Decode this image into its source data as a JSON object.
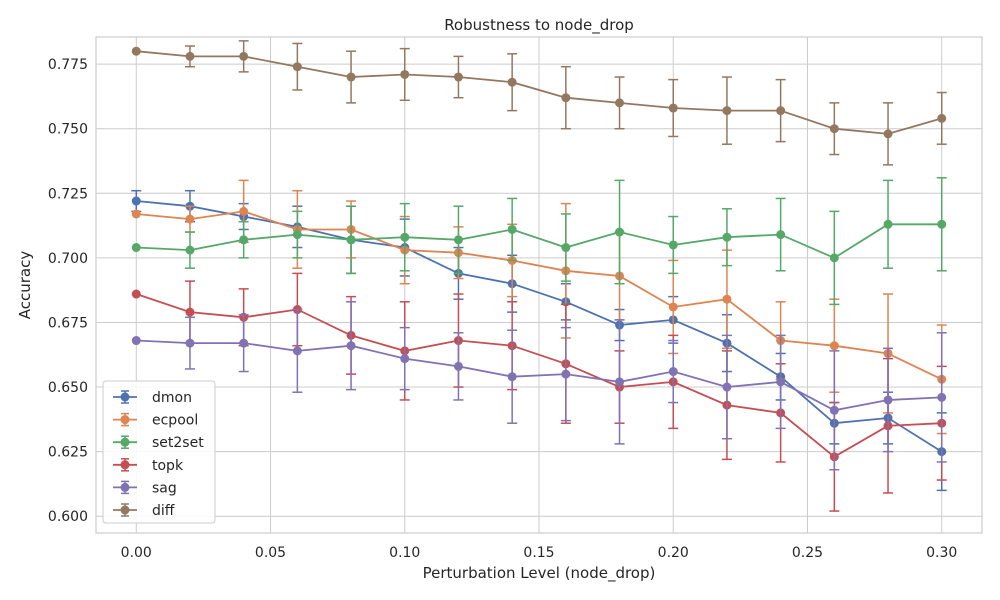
{
  "chart_data": {
    "type": "line",
    "title": "Robustness to node_drop",
    "xlabel": "Perturbation Level (node_drop)",
    "ylabel": "Accuracy",
    "xlim": [
      -0.015,
      0.315
    ],
    "ylim": [
      0.5935,
      0.7855
    ],
    "x_ticks": [
      0.0,
      0.05,
      0.1,
      0.15,
      0.2,
      0.25,
      0.3
    ],
    "x_tick_labels": [
      "0.00",
      "0.05",
      "0.10",
      "0.15",
      "0.20",
      "0.25",
      "0.30"
    ],
    "y_ticks": [
      0.6,
      0.625,
      0.65,
      0.675,
      0.7,
      0.725,
      0.75,
      0.775
    ],
    "y_tick_labels": [
      "0.600",
      "0.625",
      "0.650",
      "0.675",
      "0.700",
      "0.725",
      "0.750",
      "0.775"
    ],
    "grid": true,
    "legend_position": "bottom-left",
    "x": [
      0.0,
      0.02,
      0.04,
      0.06,
      0.08,
      0.1,
      0.12,
      0.14,
      0.16,
      0.18,
      0.2,
      0.22,
      0.24,
      0.26,
      0.28,
      0.3
    ],
    "series": [
      {
        "name": "dmon",
        "color": "#4c72b0",
        "values": [
          0.722,
          0.72,
          0.716,
          0.712,
          0.707,
          0.704,
          0.694,
          0.69,
          0.683,
          0.674,
          0.676,
          0.667,
          0.654,
          0.636,
          0.638,
          0.625
        ],
        "errors": [
          0.004,
          0.006,
          0.005,
          0.008,
          0.013,
          0.011,
          0.01,
          0.011,
          0.007,
          0.006,
          0.009,
          0.011,
          0.009,
          0.008,
          0.01,
          0.015
        ]
      },
      {
        "name": "ecpool",
        "color": "#dd8452",
        "values": [
          0.717,
          0.715,
          0.718,
          0.711,
          0.711,
          0.703,
          0.702,
          0.699,
          0.695,
          0.693,
          0.681,
          0.684,
          0.668,
          0.666,
          0.663,
          0.653
        ],
        "errors": [
          0.0,
          0.005,
          0.012,
          0.015,
          0.011,
          0.013,
          0.01,
          0.014,
          0.026,
          0.017,
          0.018,
          0.019,
          0.015,
          0.018,
          0.023,
          0.021
        ]
      },
      {
        "name": "set2set",
        "color": "#55a868",
        "values": [
          0.704,
          0.703,
          0.707,
          0.709,
          0.707,
          0.708,
          0.707,
          0.711,
          0.704,
          0.71,
          0.705,
          0.708,
          0.709,
          0.7,
          0.713,
          0.713
        ],
        "errors": [
          0.0,
          0.007,
          0.007,
          0.009,
          0.013,
          0.013,
          0.013,
          0.012,
          0.013,
          0.02,
          0.011,
          0.011,
          0.014,
          0.018,
          0.017,
          0.018
        ]
      },
      {
        "name": "topk",
        "color": "#c44e52",
        "values": [
          0.686,
          0.679,
          0.677,
          0.68,
          0.67,
          0.664,
          0.668,
          0.666,
          0.659,
          0.65,
          0.652,
          0.643,
          0.64,
          0.623,
          0.635,
          0.636
        ],
        "errors": [
          0.0,
          0.012,
          0.011,
          0.014,
          0.015,
          0.019,
          0.018,
          0.017,
          0.023,
          0.014,
          0.018,
          0.021,
          0.019,
          0.021,
          0.026,
          0.022
        ]
      },
      {
        "name": "sag",
        "color": "#8172b3",
        "values": [
          0.668,
          0.667,
          0.667,
          0.664,
          0.666,
          0.661,
          0.658,
          0.654,
          0.655,
          0.652,
          0.656,
          0.65,
          0.652,
          0.641,
          0.645,
          0.646
        ],
        "errors": [
          0.0,
          0.01,
          0.011,
          0.016,
          0.017,
          0.012,
          0.013,
          0.018,
          0.018,
          0.024,
          0.012,
          0.02,
          0.018,
          0.023,
          0.02,
          0.025
        ]
      },
      {
        "name": "diff",
        "color": "#937860",
        "values": [
          0.78,
          0.778,
          0.778,
          0.774,
          0.77,
          0.771,
          0.77,
          0.768,
          0.762,
          0.76,
          0.758,
          0.757,
          0.757,
          0.75,
          0.748,
          0.754
        ],
        "errors": [
          0.0,
          0.004,
          0.006,
          0.009,
          0.01,
          0.01,
          0.008,
          0.011,
          0.012,
          0.01,
          0.011,
          0.013,
          0.012,
          0.01,
          0.012,
          0.01
        ]
      }
    ]
  }
}
